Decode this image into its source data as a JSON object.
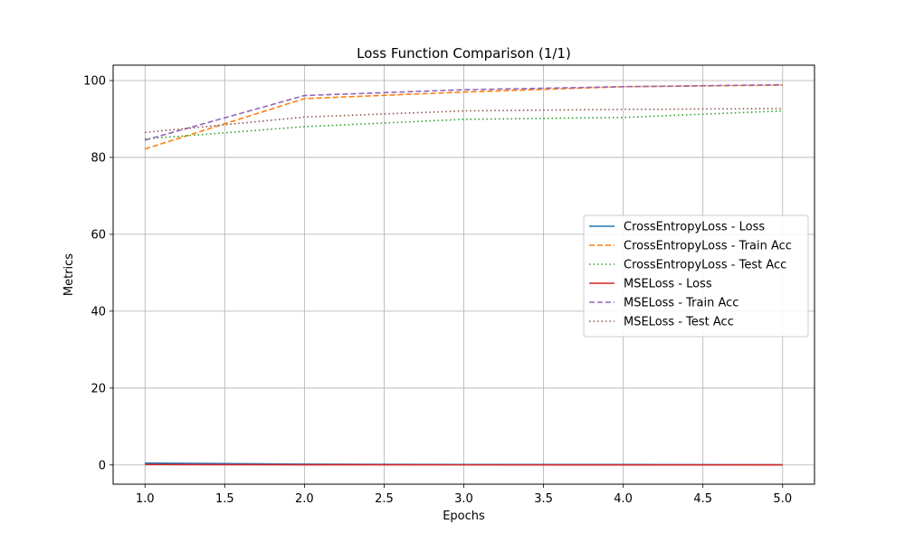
{
  "chart_data": {
    "type": "line",
    "title": "Loss Function Comparison (1/1)",
    "xlabel": "Epochs",
    "ylabel": "Metrics",
    "x": [
      1,
      2,
      3,
      4,
      5
    ],
    "xlim": [
      0.8,
      5.2
    ],
    "ylim": [
      -5,
      104
    ],
    "xticks": [
      1.0,
      1.5,
      2.0,
      2.5,
      3.0,
      3.5,
      4.0,
      4.5,
      5.0
    ],
    "xtick_labels": [
      "1.0",
      "1.5",
      "2.0",
      "2.5",
      "3.0",
      "3.5",
      "4.0",
      "4.5",
      "5.0"
    ],
    "yticks": [
      0,
      20,
      40,
      60,
      80,
      100
    ],
    "ytick_labels": [
      "0",
      "20",
      "40",
      "60",
      "80",
      "100"
    ],
    "grid": true,
    "legend_position": "center-right",
    "series": [
      {
        "name": "CrossEntropyLoss - Loss",
        "values": [
          0.5,
          0.2,
          0.1,
          0.1,
          0.05
        ],
        "color": "#1f77b4",
        "style": "solid"
      },
      {
        "name": "CrossEntropyLoss - Train Acc",
        "values": [
          82.2,
          95.3,
          97.0,
          98.4,
          98.8
        ],
        "color": "#ff7f0e",
        "style": "dashed"
      },
      {
        "name": "CrossEntropyLoss - Test Acc",
        "values": [
          84.8,
          88.0,
          89.9,
          90.4,
          92.1
        ],
        "color": "#2ca02c",
        "style": "dotted"
      },
      {
        "name": "MSELoss - Loss",
        "values": [
          0.1,
          0.05,
          0.03,
          0.02,
          0.01
        ],
        "color": "#d62728",
        "style": "solid"
      },
      {
        "name": "MSELoss - Train Acc",
        "values": [
          84.5,
          96.1,
          97.6,
          98.4,
          98.9
        ],
        "color": "#9467bd",
        "style": "dashed"
      },
      {
        "name": "MSELoss - Test Acc",
        "values": [
          86.5,
          90.5,
          92.1,
          92.5,
          92.7
        ],
        "color": "#8c564b",
        "style": "dotted"
      }
    ]
  }
}
